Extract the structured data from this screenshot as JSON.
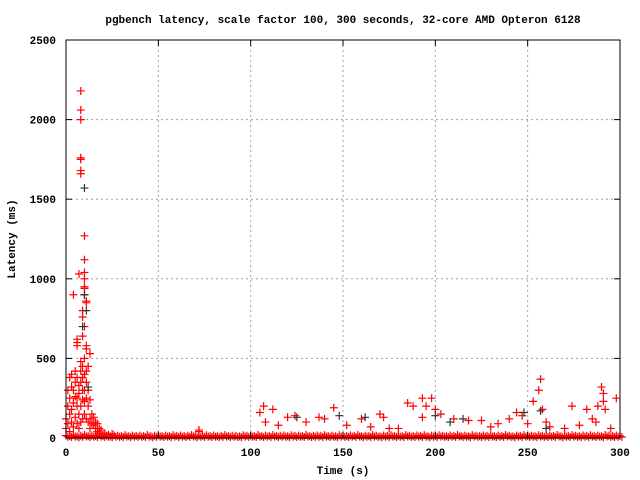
{
  "chart_data": {
    "type": "scatter",
    "title": "pgbench latency, scale factor 100, 300 seconds, 32-core AMD Opteron 6128",
    "xlabel": "Time (s)",
    "ylabel": "Latency (ms)",
    "xlim": [
      0,
      300
    ],
    "ylim": [
      0,
      2500
    ],
    "xticks": [
      0,
      50,
      100,
      150,
      200,
      250,
      300
    ],
    "yticks": [
      0,
      500,
      1000,
      1500,
      2000,
      2500
    ],
    "grid": true,
    "legend": "none",
    "marker": "plus",
    "series": [
      {
        "color": "#ff0000",
        "points": [
          [
            8,
            2180
          ],
          [
            8,
            2060
          ],
          [
            8,
            2000
          ],
          [
            8,
            1760
          ],
          [
            8,
            1750
          ],
          [
            8,
            1680
          ],
          [
            8,
            1660
          ],
          [
            10,
            1270
          ],
          [
            10,
            1120
          ],
          [
            10,
            1040
          ],
          [
            10,
            1000
          ],
          [
            10,
            950
          ],
          [
            10,
            940
          ],
          [
            11,
            860
          ],
          [
            11,
            850
          ],
          [
            7,
            1030
          ],
          [
            4,
            900
          ],
          [
            10,
            900
          ],
          [
            9,
            800
          ],
          [
            9,
            760
          ],
          [
            10,
            700
          ],
          [
            9,
            640
          ],
          [
            6,
            620
          ],
          [
            6,
            600
          ],
          [
            6,
            580
          ],
          [
            11,
            580
          ],
          [
            11,
            560
          ],
          [
            13,
            530
          ],
          [
            8,
            480
          ],
          [
            12,
            450
          ],
          [
            3,
            400
          ],
          [
            2,
            380
          ],
          [
            5,
            420
          ],
          [
            4,
            300
          ],
          [
            6,
            250
          ],
          [
            10,
            230
          ],
          [
            12,
            200
          ],
          [
            14,
            150
          ],
          [
            16,
            100
          ],
          [
            18,
            60
          ],
          [
            1,
            200
          ],
          [
            2,
            150
          ],
          [
            3,
            100
          ],
          [
            5,
            350
          ],
          [
            7,
            330
          ],
          [
            9,
            300
          ],
          [
            11,
            350
          ],
          [
            13,
            120
          ],
          [
            15,
            80
          ],
          [
            17,
            40
          ],
          [
            20,
            20
          ],
          [
            0,
            120
          ],
          [
            0,
            60
          ],
          [
            1,
            300
          ],
          [
            1,
            90
          ],
          [
            2,
            250
          ],
          [
            2,
            40
          ],
          [
            3,
            320
          ],
          [
            3,
            180
          ],
          [
            4,
            220
          ],
          [
            4,
            70
          ],
          [
            5,
            260
          ],
          [
            5,
            130
          ],
          [
            6,
            380
          ],
          [
            6,
            200
          ],
          [
            6,
            90
          ],
          [
            7,
            280
          ],
          [
            7,
            150
          ],
          [
            7,
            60
          ],
          [
            8,
            420
          ],
          [
            8,
            350
          ],
          [
            8,
            200
          ],
          [
            8,
            100
          ],
          [
            9,
            450
          ],
          [
            9,
            380
          ],
          [
            9,
            240
          ],
          [
            9,
            120
          ],
          [
            10,
            500
          ],
          [
            10,
            400
          ],
          [
            10,
            300
          ],
          [
            10,
            150
          ],
          [
            11,
            420
          ],
          [
            11,
            250
          ],
          [
            11,
            120
          ],
          [
            12,
            300
          ],
          [
            12,
            100
          ],
          [
            13,
            240
          ],
          [
            13,
            60
          ],
          [
            14,
            90
          ],
          [
            15,
            130
          ],
          [
            16,
            60
          ],
          [
            17,
            90
          ],
          [
            18,
            30
          ],
          [
            19,
            50
          ],
          [
            21,
            30
          ],
          [
            23,
            20
          ],
          [
            25,
            25
          ],
          [
            72,
            50
          ],
          [
            72,
            40
          ],
          [
            105,
            160
          ],
          [
            107,
            200
          ],
          [
            112,
            180
          ],
          [
            108,
            100
          ],
          [
            115,
            80
          ],
          [
            120,
            130
          ],
          [
            124,
            140
          ],
          [
            130,
            100
          ],
          [
            137,
            130
          ],
          [
            140,
            120
          ],
          [
            145,
            190
          ],
          [
            152,
            80
          ],
          [
            160,
            120
          ],
          [
            165,
            70
          ],
          [
            170,
            150
          ],
          [
            172,
            130
          ],
          [
            175,
            60
          ],
          [
            180,
            60
          ],
          [
            185,
            220
          ],
          [
            188,
            200
          ],
          [
            193,
            250
          ],
          [
            195,
            200
          ],
          [
            193,
            130
          ],
          [
            198,
            250
          ],
          [
            200,
            180
          ],
          [
            203,
            150
          ],
          [
            210,
            120
          ],
          [
            218,
            110
          ],
          [
            225,
            110
          ],
          [
            230,
            70
          ],
          [
            234,
            90
          ],
          [
            240,
            120
          ],
          [
            244,
            160
          ],
          [
            247,
            140
          ],
          [
            250,
            90
          ],
          [
            253,
            230
          ],
          [
            256,
            300
          ],
          [
            257,
            370
          ],
          [
            258,
            180
          ],
          [
            260,
            100
          ],
          [
            262,
            70
          ],
          [
            270,
            60
          ],
          [
            274,
            200
          ],
          [
            278,
            80
          ],
          [
            282,
            180
          ],
          [
            285,
            120
          ],
          [
            287,
            100
          ],
          [
            288,
            200
          ],
          [
            290,
            320
          ],
          [
            291,
            280
          ],
          [
            291,
            230
          ],
          [
            292,
            180
          ],
          [
            295,
            60
          ],
          [
            298,
            250
          ]
        ],
        "baseline": [
          15,
          12,
          18,
          10,
          14,
          20,
          11,
          16,
          13,
          19,
          12,
          15,
          10,
          17,
          14,
          12,
          18,
          11,
          16,
          13,
          15,
          12,
          19,
          10,
          14,
          17,
          12,
          15,
          11,
          18,
          13,
          16,
          12,
          14,
          19,
          10,
          15,
          13,
          17,
          12,
          16,
          11,
          14,
          18,
          12,
          15,
          13,
          10,
          17,
          14,
          16,
          12,
          19,
          11,
          15,
          13,
          18,
          12,
          14,
          16,
          10,
          17,
          13,
          15,
          12,
          19,
          11,
          14,
          16,
          13,
          18,
          12,
          15,
          10,
          17,
          14,
          12,
          16,
          13,
          19,
          11,
          15,
          12,
          18,
          14,
          10,
          16,
          13,
          17,
          12,
          15,
          11,
          19,
          14,
          12,
          16,
          13,
          18,
          10,
          15,
          12,
          17,
          14,
          11,
          16,
          13,
          19,
          12,
          15,
          10,
          18,
          14,
          12,
          16,
          13,
          17,
          11,
          15,
          12,
          19,
          14,
          10,
          16,
          13,
          18,
          12,
          15,
          11,
          17,
          14,
          12,
          16,
          13,
          19,
          10,
          15,
          12,
          18,
          14,
          11,
          16,
          13,
          17,
          12,
          15,
          10,
          19,
          14,
          12,
          16,
          13
        ]
      },
      {
        "color": "#333333",
        "points": [
          [
            10,
            1570
          ],
          [
            10,
            900
          ],
          [
            11,
            800
          ],
          [
            12,
            320
          ],
          [
            9,
            700
          ],
          [
            125,
            130
          ],
          [
            148,
            140
          ],
          [
            162,
            130
          ],
          [
            200,
            140
          ],
          [
            208,
            100
          ],
          [
            215,
            120
          ],
          [
            248,
            160
          ],
          [
            257,
            170
          ],
          [
            260,
            60
          ]
        ]
      }
    ]
  }
}
